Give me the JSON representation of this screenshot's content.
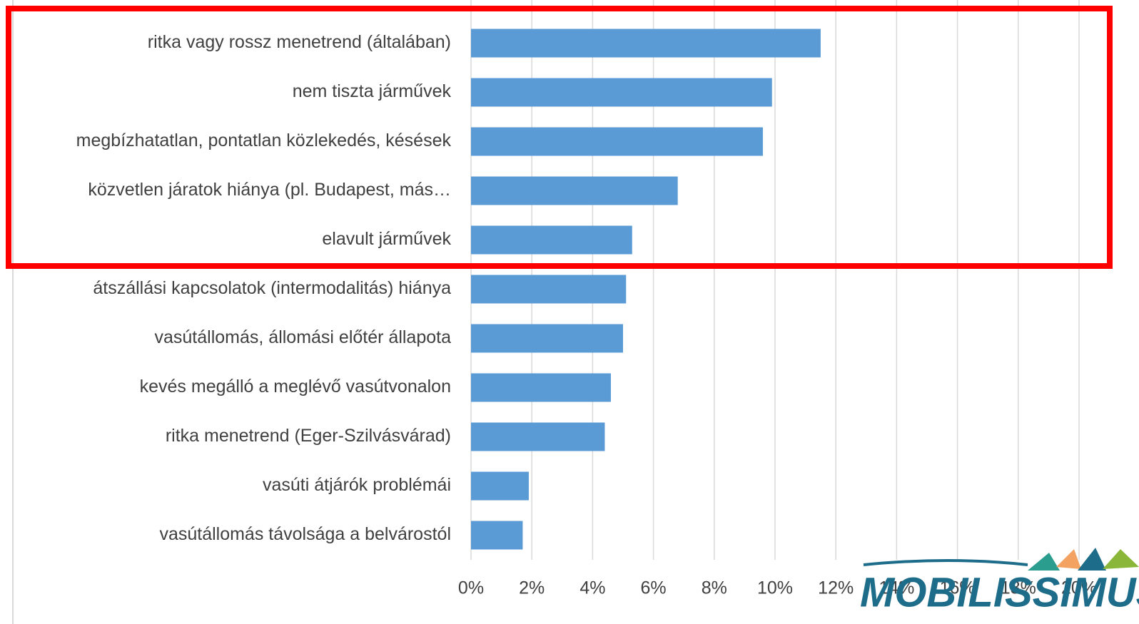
{
  "chart_data": {
    "type": "barh",
    "categories": [
      "ritka vagy rossz menetrend (általában)",
      "nem tiszta járművek",
      "megbízhatatlan, pontatlan közlekedés, késések",
      "közvetlen járatok hiánya (pl. Budapest, más…",
      "elavult járművek",
      "átszállási kapcsolatok (intermodalitás) hiánya",
      "vasútállomás, állomási előtér állapota",
      "kevés megálló a meglévő vasútvonalon",
      "ritka menetrend (Eger-Szilvásvárad)",
      "vasúti átjárók problémái",
      "vasútállomás távolsága a belvárostól"
    ],
    "values": [
      11.5,
      9.9,
      9.6,
      6.8,
      5.3,
      5.1,
      5.0,
      4.6,
      4.4,
      1.9,
      1.7
    ],
    "color": "#5b9bd5",
    "xlim": [
      0,
      21
    ],
    "xticks": [
      {
        "value": 0,
        "label": "0%"
      },
      {
        "value": 2,
        "label": "2%"
      },
      {
        "value": 4,
        "label": "4%"
      },
      {
        "value": 6,
        "label": "6%"
      },
      {
        "value": 8,
        "label": "8%"
      },
      {
        "value": 10,
        "label": "10%"
      },
      {
        "value": 12,
        "label": "12%"
      },
      {
        "value": 14,
        "label": "14%"
      },
      {
        "value": 16,
        "label": "16%"
      },
      {
        "value": 18,
        "label": "18%"
      },
      {
        "value": 20,
        "label": "20%"
      }
    ],
    "grid": true,
    "logo": "MOBILISSIMUS"
  }
}
